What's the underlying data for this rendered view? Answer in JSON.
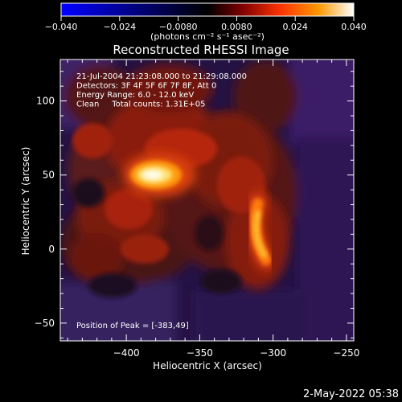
{
  "chart_data": {
    "type": "heatmap",
    "title": "Reconstructed RHESSI Image",
    "xlabel": "Heliocentric X (arcsec)",
    "ylabel": "Heliocentric Y (arcsec)",
    "xlim": [
      -445,
      -245
    ],
    "ylim": [
      -62,
      128
    ],
    "xticks": [
      {
        "value": -400,
        "label": "−400"
      },
      {
        "value": -350,
        "label": "−350"
      },
      {
        "value": -300,
        "label": "−300"
      },
      {
        "value": -250,
        "label": "−250"
      }
    ],
    "yticks": [
      {
        "value": -50,
        "label": "−50"
      },
      {
        "value": 0,
        "label": "0"
      },
      {
        "value": 50,
        "label": "50"
      },
      {
        "value": 100,
        "label": "100"
      }
    ],
    "colorbar": {
      "range": [
        -0.04,
        0.04
      ],
      "ticks": [
        {
          "value": -0.04,
          "label": "−0.040"
        },
        {
          "value": -0.024,
          "label": "−0.024"
        },
        {
          "value": -0.008,
          "label": "−0.0080"
        },
        {
          "value": 0.008,
          "label": "0.0080"
        },
        {
          "value": 0.024,
          "label": "0.024"
        },
        {
          "value": 0.04,
          "label": "0.040"
        }
      ],
      "unit_label": "(photons cm⁻² s⁻¹ asec⁻²)",
      "colors": [
        "#0000ff",
        "#000000",
        "#800000",
        "#ff3300",
        "#ff9900",
        "#ffffff"
      ]
    },
    "annotations": [
      "21-Jul-2004 21:23:08.000 to 21:29:08.000",
      "Detectors: 3F 4F 5F 6F 7F 8F, Att 0",
      "Energy Range: 6.0 - 12.0 keV",
      "Clean     Total counts: 1.31E+05"
    ],
    "peak_label": "Position of Peak = [-383,49]",
    "sources": [
      {
        "x": -383,
        "y": 49,
        "peak": 0.04
      },
      {
        "x": -306,
        "y": 8,
        "peak": 0.03
      }
    ]
  },
  "footer": {
    "timestamp": "2-May-2022 05:38"
  }
}
